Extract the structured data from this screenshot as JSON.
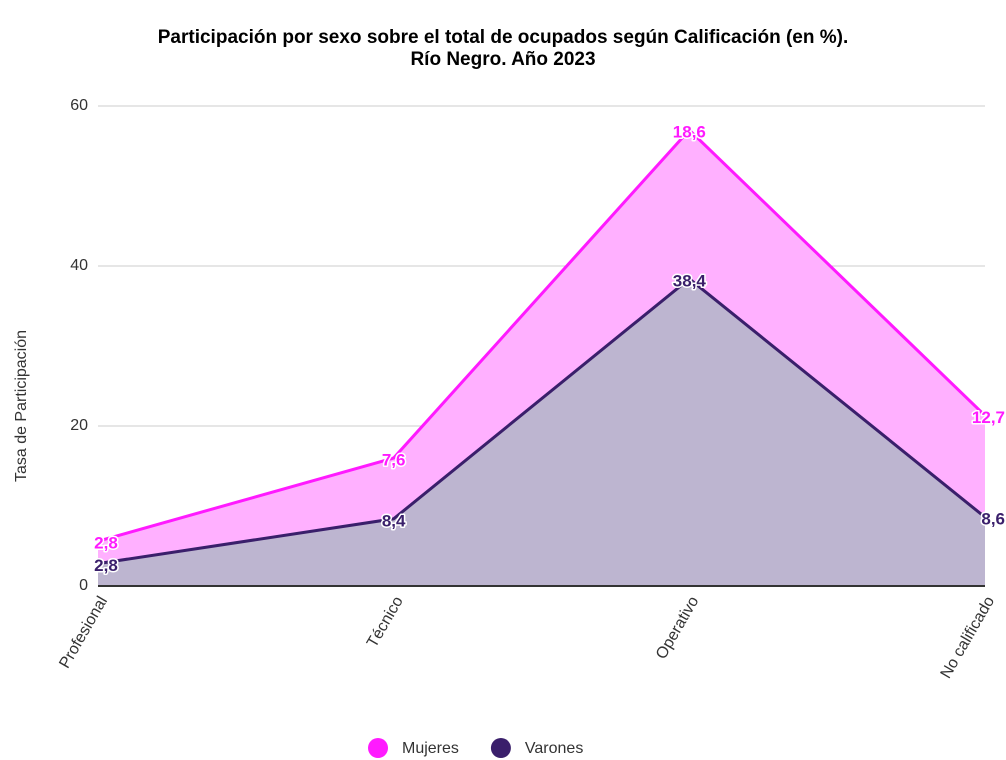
{
  "chart_data": {
    "type": "stacked_area",
    "title": "Participación por sexo sobre el total de ocupados según Calificación (en %).",
    "subtitle": "Río Negro. Año 2023",
    "y_label": "Tasa de Participación",
    "categories": [
      "Profesional",
      "Técnico",
      "Operativo",
      "No calificado"
    ],
    "series": [
      {
        "name": "Varones",
        "color": "#3a1f6b",
        "fill": "#bdb5d0",
        "values": [
          2.8,
          8.4,
          38.4,
          8.6
        ],
        "value_labels": [
          "2,8",
          "8,4",
          "38,4",
          "8,6"
        ]
      },
      {
        "name": "Mujeres",
        "color": "#ff1aff",
        "fill": "#ffb0ff",
        "values": [
          2.8,
          7.6,
          18.6,
          12.7
        ],
        "value_labels": [
          "2,8",
          "7,6",
          "18,6",
          "12,7"
        ]
      }
    ],
    "ylim": [
      0,
      60
    ],
    "yticks": [
      0,
      20,
      40,
      60
    ],
    "grid": true,
    "legend": "bottom"
  }
}
